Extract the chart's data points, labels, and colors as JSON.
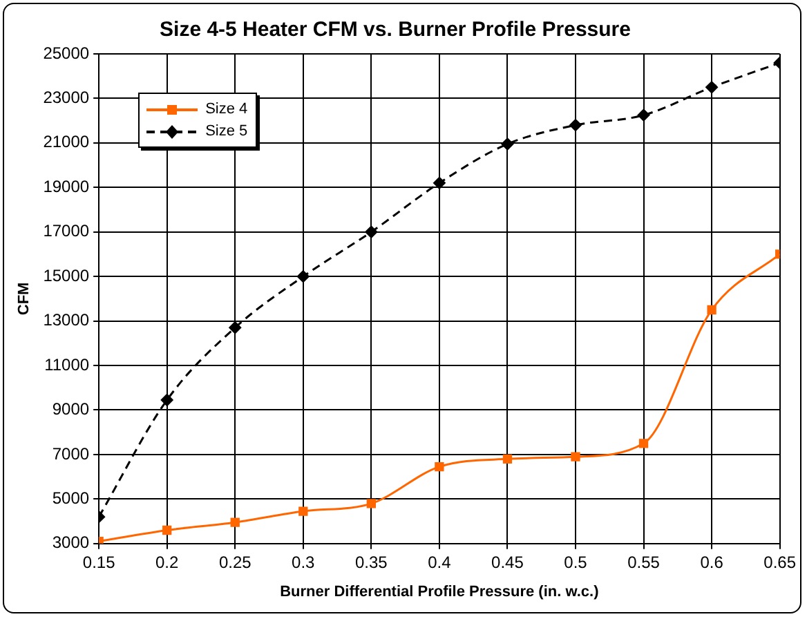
{
  "chart_data": {
    "type": "line",
    "title": "Size 4-5 Heater CFM vs. Burner Profile Pressure",
    "xlabel": "Burner Differential Profile Pressure (in. w.c.)",
    "ylabel": "CFM",
    "x": [
      0.15,
      0.2,
      0.25,
      0.3,
      0.35,
      0.4,
      0.45,
      0.5,
      0.55,
      0.6,
      0.65
    ],
    "series": [
      {
        "name": "Size 4",
        "color": "#ff6600",
        "marker": "square",
        "line_style": "solid",
        "values": [
          3100,
          3600,
          3950,
          4450,
          4800,
          6450,
          6800,
          6900,
          7500,
          13500,
          16000
        ]
      },
      {
        "name": "Size 5",
        "color": "#000000",
        "marker": "diamond",
        "line_style": "dashed",
        "values": [
          4200,
          9450,
          12700,
          15000,
          17000,
          19200,
          20950,
          21800,
          22250,
          23500,
          24600
        ]
      }
    ],
    "xlim": [
      0.15,
      0.65
    ],
    "xticks": [
      0.15,
      0.2,
      0.25,
      0.3,
      0.35,
      0.4,
      0.45,
      0.5,
      0.55,
      0.6,
      0.65
    ],
    "ylim": [
      3000,
      25000
    ],
    "yticks": [
      3000,
      5000,
      7000,
      9000,
      11000,
      13000,
      15000,
      17000,
      19000,
      21000,
      23000,
      25000
    ],
    "grid": true,
    "legend": "top left"
  }
}
